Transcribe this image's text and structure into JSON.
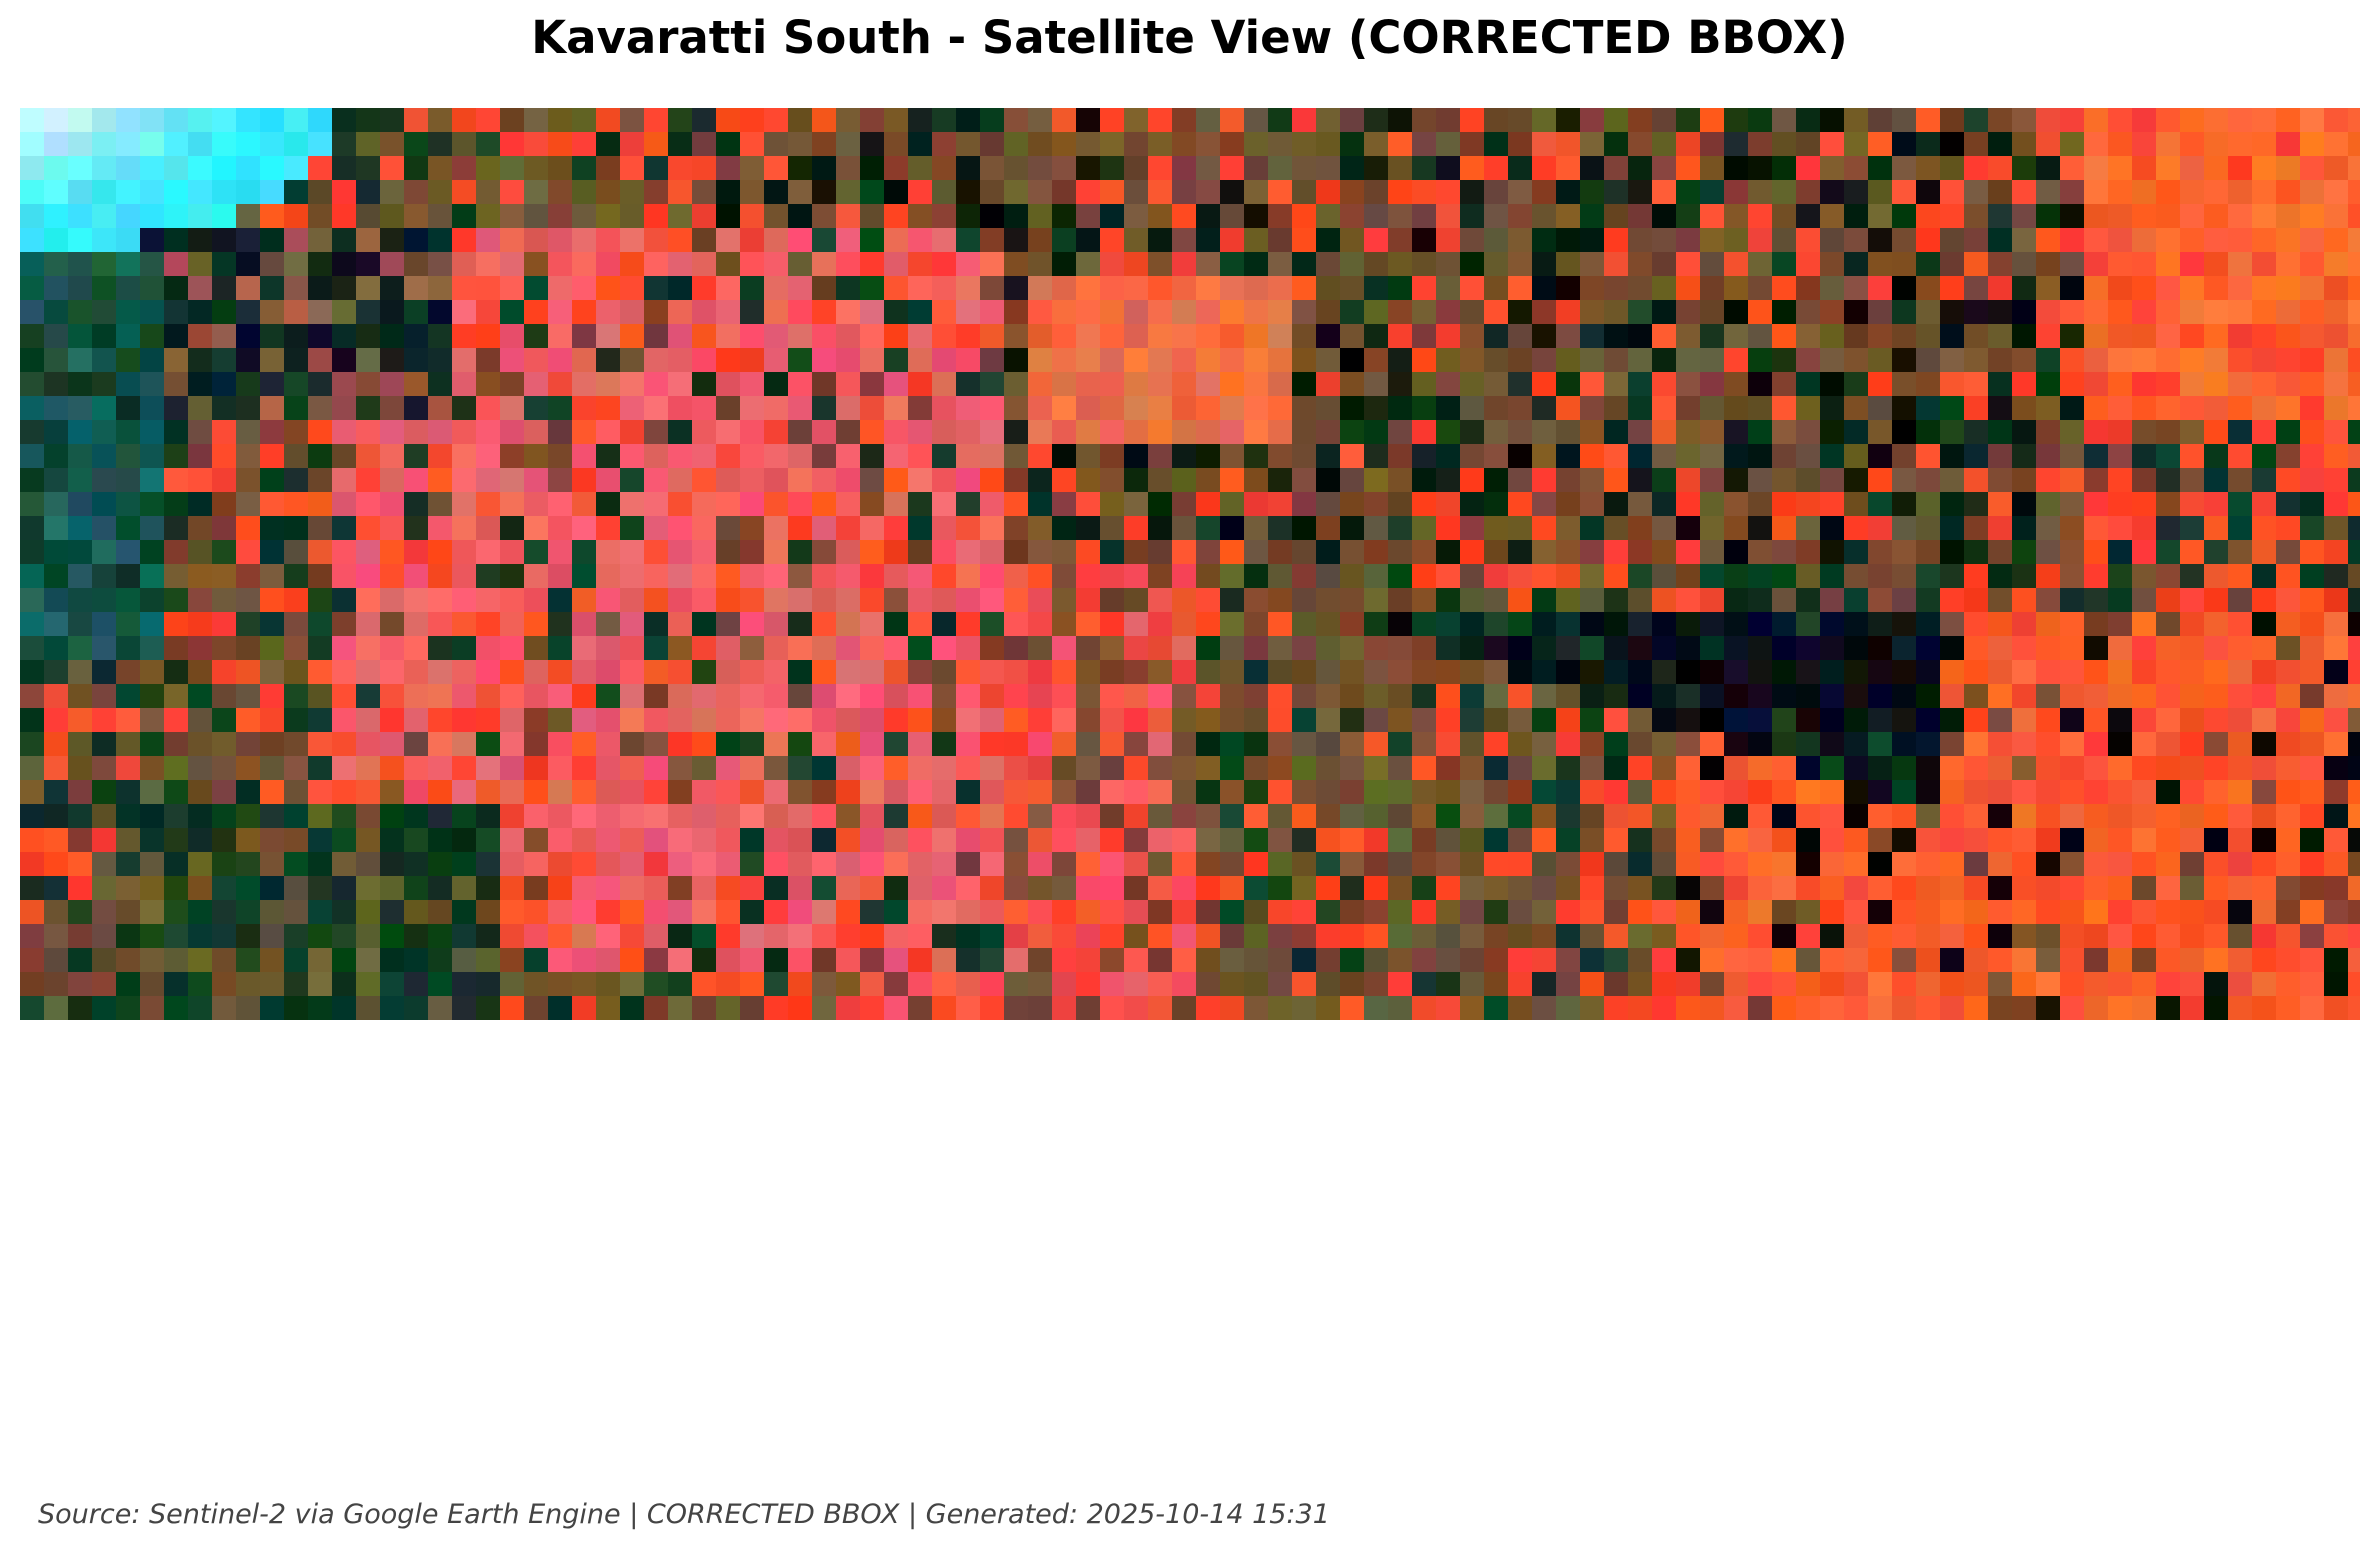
{
  "figure": {
    "title": "Kavaratti South - Satellite View (CORRECTED BBOX)",
    "footer": "Source: Sentinel-2 via Google Earth Engine | CORRECTED BBOX | Generated: 2025-10-14 15:31"
  },
  "imagery": {
    "palette": {
      "cyan": "#35e8ff",
      "pale": "#e8f8ff",
      "pink": "#f25a6e",
      "salmon": "#e0705a",
      "red_orange": "#ff4a2a",
      "orange": "#ff6a30",
      "olive": "#6a5a30",
      "brown": "#7a4a30",
      "dark_green": "#0f3a22",
      "dark_navy": "#0a1428",
      "black": "#050805",
      "teal": "#1a6a6a"
    }
  }
}
